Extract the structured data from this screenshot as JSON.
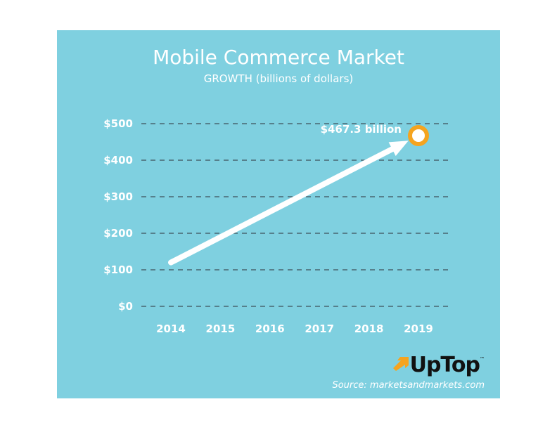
{
  "chart_data": {
    "type": "line",
    "title": "Mobile Commerce Market",
    "subtitle": "GROWTH (billions of dollars)",
    "x": [
      "2014",
      "2015",
      "2016",
      "2017",
      "2018",
      "2019"
    ],
    "series": [
      {
        "values": [
          120,
          null,
          null,
          null,
          null,
          467.3
        ]
      }
    ],
    "y_ticks": [
      "$0",
      "$100",
      "$200",
      "$300",
      "$400",
      "$500"
    ],
    "ylim": [
      0,
      500
    ],
    "grid": true,
    "annotation": "$467.3 billion",
    "colors": {
      "background": "#7fd0e0",
      "line": "#ffffff",
      "marker": "#f5a41f",
      "grid": "#3f4f5a"
    }
  },
  "branding": {
    "logo_text": "UpTop",
    "logo_mark": "™",
    "logo_arrow_color": "#f5a41f"
  },
  "source": "Source: marketsandmarkets.com"
}
